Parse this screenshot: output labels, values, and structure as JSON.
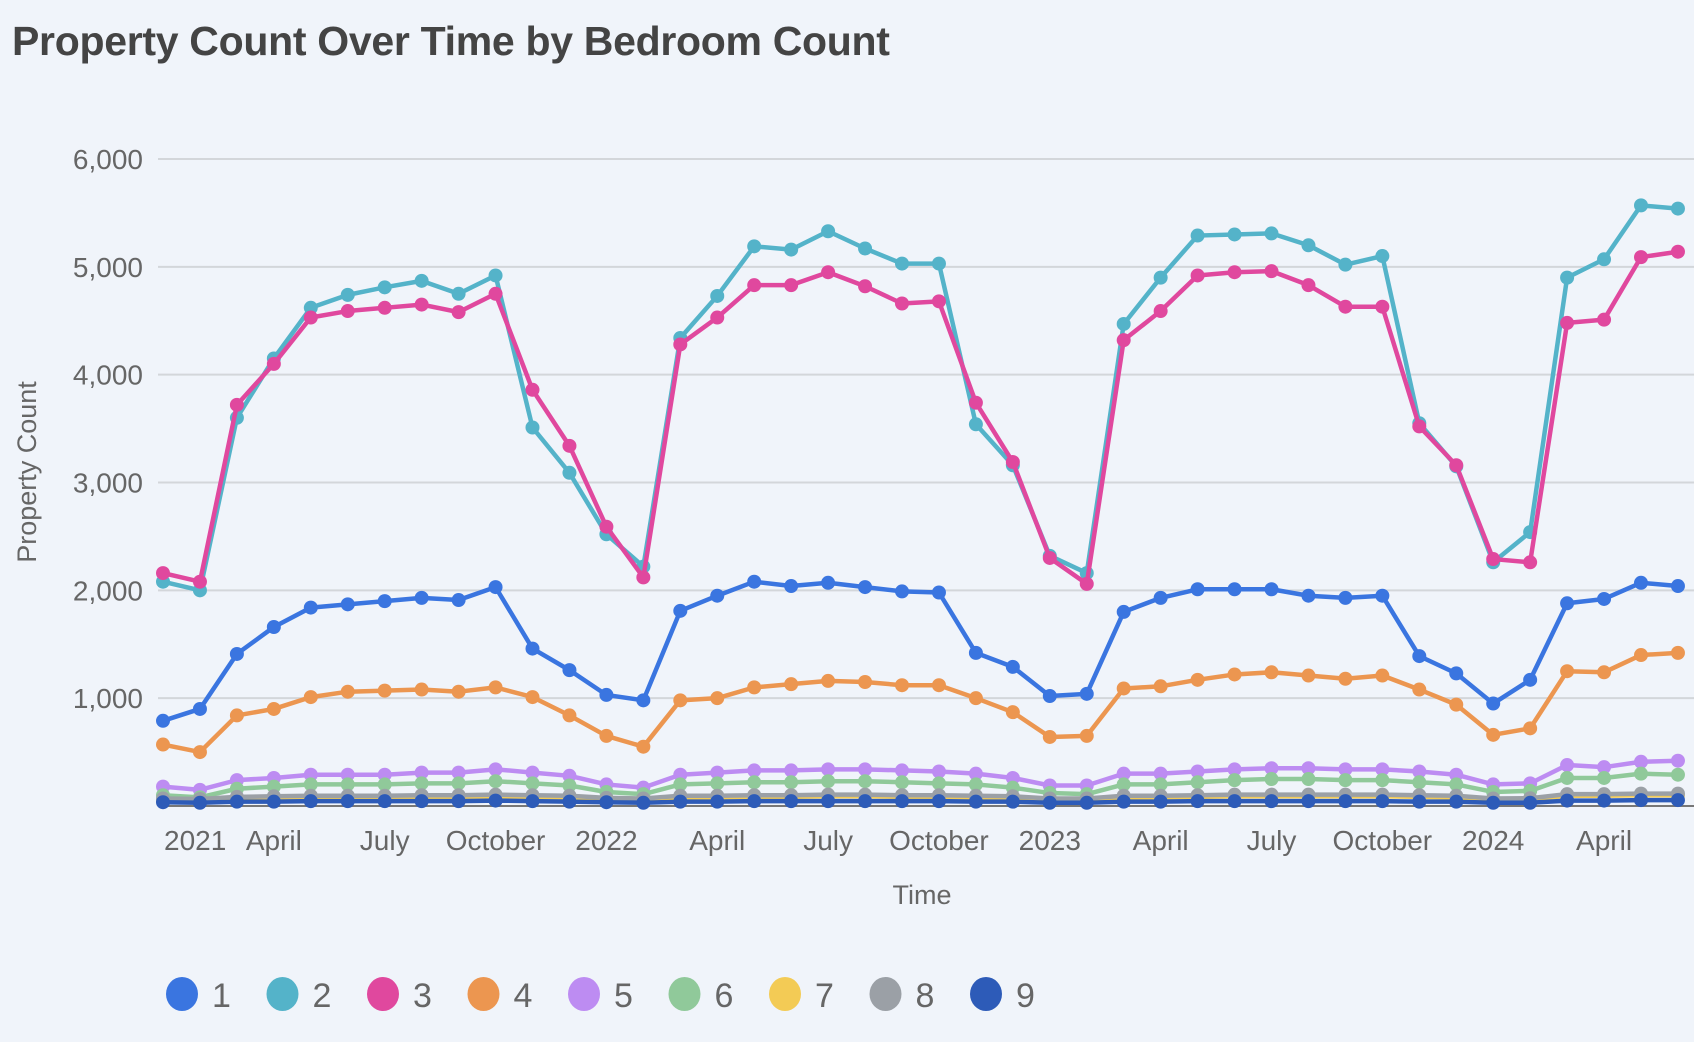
{
  "chart_data": {
    "type": "line",
    "title": "Property Count Over Time by Bedroom Count",
    "xlabel": "Time",
    "ylabel": "Property Count",
    "ylim": [
      0,
      6000
    ],
    "yticks": [
      1000,
      2000,
      3000,
      4000,
      5000,
      6000
    ],
    "ytick_labels": [
      "1,000",
      "2,000",
      "3,000",
      "4,000",
      "5,000",
      "6,000"
    ],
    "grid": true,
    "legend_position": "bottom-left",
    "x": [
      "2021-01",
      "2021-02",
      "2021-03",
      "2021-04",
      "2021-05",
      "2021-06",
      "2021-07",
      "2021-08",
      "2021-09",
      "2021-10",
      "2021-11",
      "2021-12",
      "2022-01",
      "2022-02",
      "2022-03",
      "2022-04",
      "2022-05",
      "2022-06",
      "2022-07",
      "2022-08",
      "2022-09",
      "2022-10",
      "2022-11",
      "2022-12",
      "2023-01",
      "2023-02",
      "2023-03",
      "2023-04",
      "2023-05",
      "2023-06",
      "2023-07",
      "2023-08",
      "2023-09",
      "2023-10",
      "2023-11",
      "2023-12",
      "2024-01",
      "2024-02",
      "2024-03",
      "2024-04",
      "2024-05",
      "2024-06"
    ],
    "xticks": [
      {
        "index": 0,
        "label": "2021"
      },
      {
        "index": 3,
        "label": "April"
      },
      {
        "index": 6,
        "label": "July"
      },
      {
        "index": 9,
        "label": "October"
      },
      {
        "index": 12,
        "label": "2022"
      },
      {
        "index": 15,
        "label": "April"
      },
      {
        "index": 18,
        "label": "July"
      },
      {
        "index": 21,
        "label": "October"
      },
      {
        "index": 24,
        "label": "2023"
      },
      {
        "index": 27,
        "label": "April"
      },
      {
        "index": 30,
        "label": "July"
      },
      {
        "index": 33,
        "label": "October"
      },
      {
        "index": 36,
        "label": "2024"
      },
      {
        "index": 39,
        "label": "April"
      }
    ],
    "series": [
      {
        "name": "1",
        "color": "#3a75e0",
        "values": [
          790,
          900,
          1410,
          1660,
          1840,
          1870,
          1900,
          1930,
          1910,
          2030,
          1460,
          1260,
          1030,
          980,
          1810,
          1950,
          2080,
          2040,
          2070,
          2030,
          1990,
          1980,
          1420,
          1290,
          1020,
          1040,
          1800,
          1930,
          2010,
          2010,
          2010,
          1950,
          1930,
          1950,
          1390,
          1230,
          950,
          1170,
          1880,
          1920,
          2070,
          2040
        ]
      },
      {
        "name": "2",
        "color": "#54b3c9",
        "values": [
          2080,
          2000,
          3600,
          4150,
          4620,
          4740,
          4810,
          4870,
          4750,
          4920,
          3510,
          3090,
          2520,
          2220,
          4340,
          4730,
          5190,
          5160,
          5330,
          5170,
          5030,
          5030,
          3540,
          3160,
          2320,
          2160,
          4470,
          4900,
          5290,
          5300,
          5310,
          5200,
          5020,
          5100,
          3550,
          3150,
          2260,
          2540,
          4900,
          5070,
          5570,
          5540
        ]
      },
      {
        "name": "3",
        "color": "#e0489e",
        "values": [
          2160,
          2080,
          3720,
          4100,
          4530,
          4590,
          4620,
          4650,
          4580,
          4750,
          3860,
          3340,
          2590,
          2120,
          4280,
          4530,
          4830,
          4830,
          4950,
          4820,
          4660,
          4680,
          3740,
          3190,
          2300,
          2060,
          4320,
          4590,
          4920,
          4950,
          4960,
          4830,
          4630,
          4630,
          3520,
          3160,
          2290,
          2260,
          4480,
          4510,
          5090,
          5140
        ]
      },
      {
        "name": "4",
        "color": "#ec9650",
        "values": [
          570,
          500,
          840,
          900,
          1010,
          1060,
          1070,
          1080,
          1060,
          1100,
          1010,
          840,
          650,
          550,
          980,
          1000,
          1100,
          1130,
          1160,
          1150,
          1120,
          1120,
          1000,
          870,
          640,
          650,
          1090,
          1110,
          1170,
          1220,
          1240,
          1210,
          1180,
          1210,
          1080,
          940,
          660,
          720,
          1250,
          1240,
          1400,
          1420
        ]
      },
      {
        "name": "5",
        "color": "#bd8cf2",
        "values": [
          180,
          150,
          240,
          260,
          290,
          290,
          290,
          310,
          310,
          340,
          310,
          280,
          200,
          170,
          290,
          310,
          330,
          330,
          340,
          340,
          330,
          320,
          300,
          260,
          190,
          190,
          300,
          300,
          320,
          340,
          350,
          350,
          340,
          340,
          320,
          290,
          200,
          210,
          380,
          360,
          410,
          420
        ]
      },
      {
        "name": "6",
        "color": "#90c99a",
        "values": [
          100,
          80,
          160,
          180,
          200,
          200,
          200,
          210,
          210,
          230,
          210,
          190,
          130,
          110,
          200,
          210,
          220,
          220,
          230,
          230,
          220,
          210,
          200,
          170,
          120,
          110,
          200,
          200,
          220,
          240,
          250,
          250,
          240,
          240,
          220,
          200,
          130,
          140,
          260,
          260,
          300,
          290
        ]
      },
      {
        "name": "7",
        "color": "#f3cb55",
        "values": [
          60,
          55,
          70,
          75,
          80,
          80,
          80,
          85,
          85,
          90,
          85,
          80,
          65,
          60,
          80,
          80,
          85,
          85,
          90,
          90,
          85,
          85,
          80,
          75,
          60,
          60,
          80,
          80,
          85,
          90,
          90,
          90,
          90,
          90,
          85,
          80,
          60,
          62,
          95,
          95,
          100,
          100
        ]
      },
      {
        "name": "8",
        "color": "#9ba0a6",
        "values": [
          70,
          65,
          85,
          90,
          95,
          95,
          95,
          100,
          100,
          105,
          100,
          95,
          75,
          70,
          95,
          95,
          100,
          100,
          105,
          105,
          100,
          100,
          95,
          90,
          70,
          70,
          95,
          95,
          100,
          105,
          105,
          105,
          105,
          105,
          100,
          95,
          70,
          72,
          110,
          110,
          115,
          115
        ]
      },
      {
        "name": "9",
        "color": "#2d5bb8",
        "values": [
          35,
          30,
          40,
          40,
          45,
          45,
          45,
          45,
          45,
          50,
          45,
          40,
          35,
          30,
          40,
          40,
          45,
          45,
          45,
          45,
          45,
          45,
          40,
          40,
          30,
          30,
          40,
          40,
          45,
          45,
          45,
          45,
          45,
          45,
          40,
          40,
          30,
          30,
          50,
          50,
          55,
          55
        ]
      }
    ]
  }
}
